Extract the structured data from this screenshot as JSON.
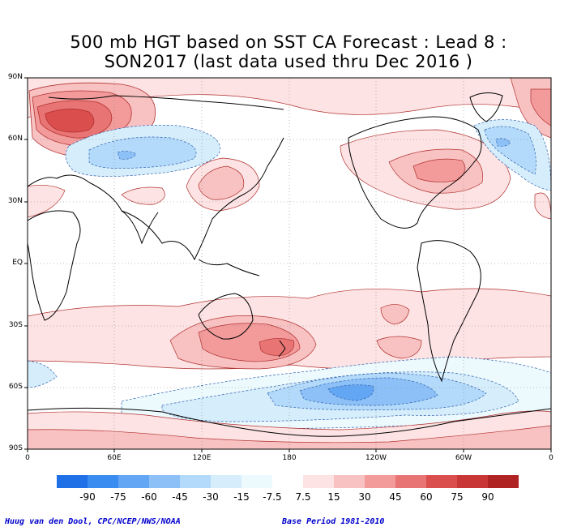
{
  "title": {
    "line1": "500 mb HGT based on SST CA Forecast : Lead 8 :",
    "line2": "SON2017 (last data used thru Dec 2016 )"
  },
  "axes": {
    "lat_labels": [
      "90N",
      "60N",
      "30N",
      "EQ",
      "30S",
      "60S",
      "90S"
    ],
    "lon_labels": [
      "0",
      "60E",
      "120E",
      "180",
      "120W",
      "60W",
      "0"
    ]
  },
  "colorbar": {
    "tick_labels": [
      "-90",
      "-75",
      "-60",
      "-45",
      "-30",
      "-15",
      "-7.5",
      "7.5",
      "15",
      "30",
      "45",
      "60",
      "75",
      "90"
    ],
    "colors": [
      "#1f6fe6",
      "#3a8cf0",
      "#63a6f4",
      "#8cc0f7",
      "#b3dafa",
      "#d6eefb",
      "#ecfafd",
      "#ffffff",
      "#fde3e3",
      "#f9c2c2",
      "#f39b9b",
      "#e97474",
      "#db4e4e",
      "#c93636",
      "#b02323"
    ]
  },
  "footer": {
    "left": "Huug van den Dool, CPC/NCEP/NWS/NOAA",
    "right": "Base Period 1981-2010"
  }
}
